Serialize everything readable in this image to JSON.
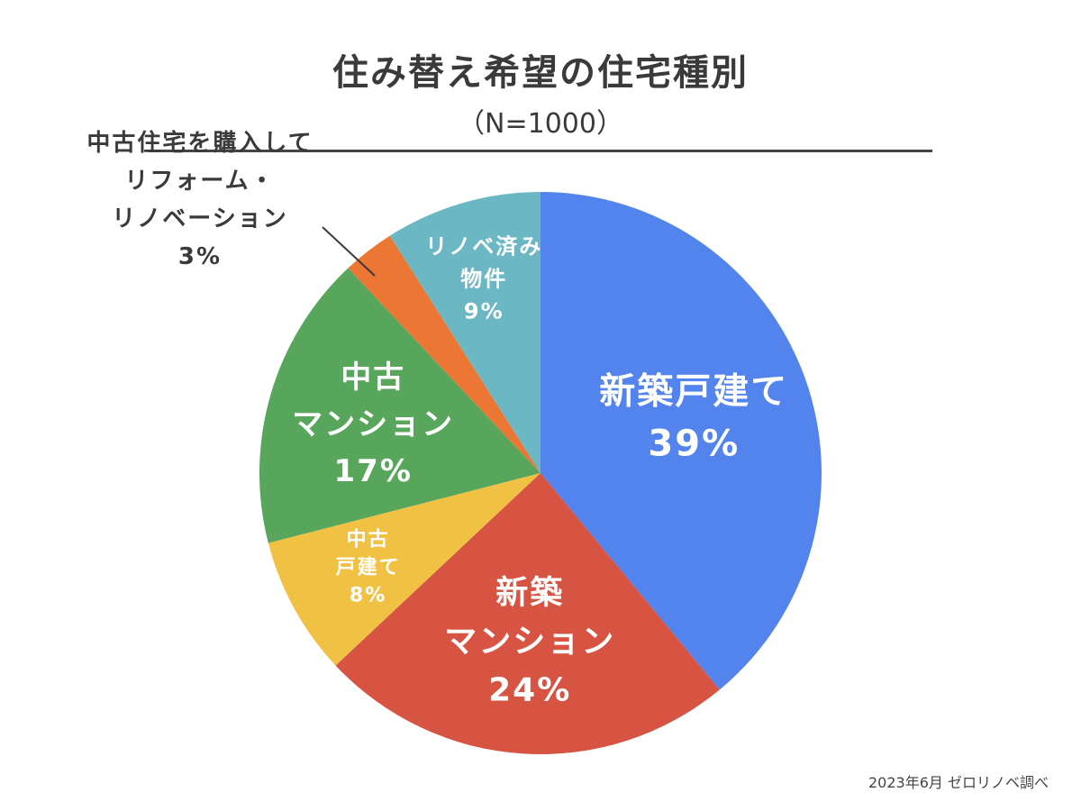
{
  "chart_data": {
    "type": "pie",
    "title": "住み替え希望の住宅種別",
    "subtitle": "（N=1000）",
    "unit": "%",
    "slices": [
      {
        "key": "new-detached",
        "label_lines": [
          "新築戸建て"
        ],
        "value": 39,
        "value_text": "39%",
        "color": "#5383EC"
      },
      {
        "key": "new-condo",
        "label_lines": [
          "新築",
          "マンション"
        ],
        "value": 24,
        "value_text": "24%",
        "color": "#D75442"
      },
      {
        "key": "used-detached",
        "label_lines": [
          "中古",
          "戸建て"
        ],
        "value": 8,
        "value_text": "8%",
        "color": "#F0C143"
      },
      {
        "key": "used-condo",
        "label_lines": [
          "中古",
          "マンション"
        ],
        "value": 17,
        "value_text": "17%",
        "color": "#58A65C"
      },
      {
        "key": "used-renovation",
        "label_lines": [
          "中古住宅を購入して",
          "リフォーム・",
          "リノベーション"
        ],
        "value": 3,
        "value_text": "3%",
        "color": "#EC7633"
      },
      {
        "key": "renovated",
        "label_lines": [
          "リノベ済み",
          "物件"
        ],
        "value": 9,
        "value_text": "9%",
        "color": "#6CB7C4"
      }
    ]
  },
  "footnote": "2023年6月 ゼロリノベ調べ"
}
